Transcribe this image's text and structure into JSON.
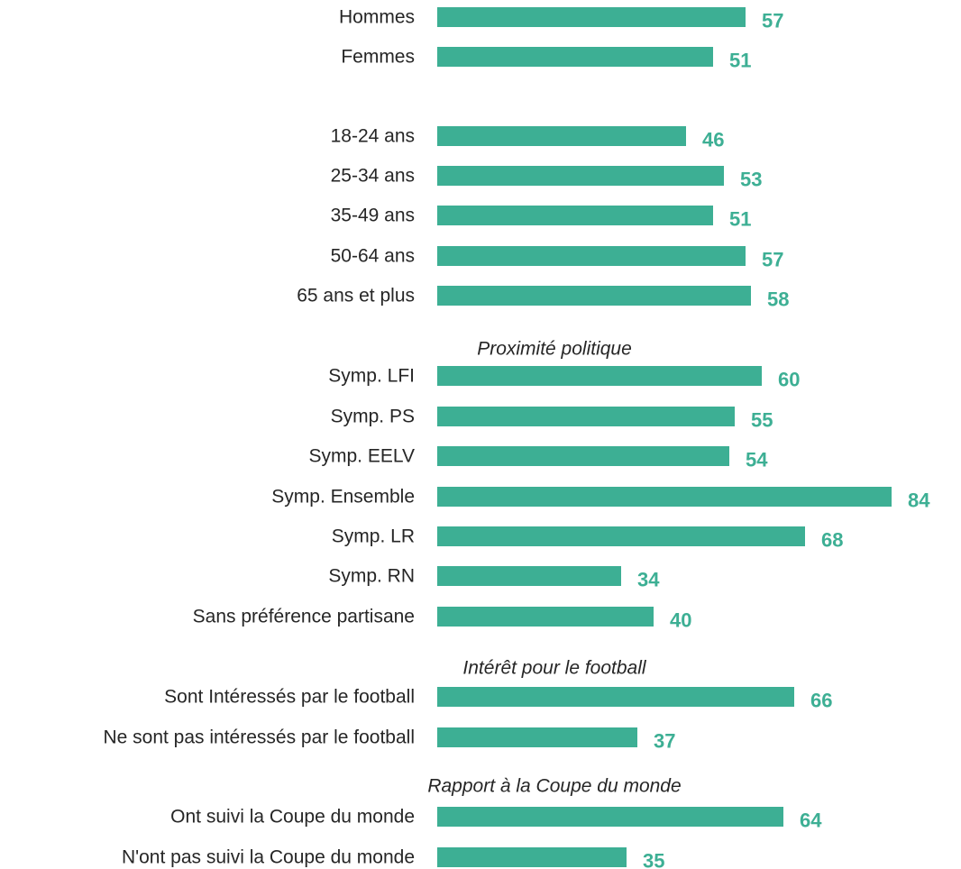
{
  "chart_data": {
    "type": "bar",
    "orientation": "horizontal",
    "bar_color": "#3daf94",
    "label_color": "#3daf94",
    "text_color": "#262626",
    "xlim": [
      0,
      84
    ],
    "grid": false,
    "groups": [
      {
        "section": "",
        "rows": [
          {
            "category": "Hommes",
            "value": 57
          },
          {
            "category": "Femmes",
            "value": 51
          }
        ]
      },
      {
        "section": "",
        "rows": [
          {
            "category": "18-24 ans",
            "value": 46
          },
          {
            "category": "25-34 ans",
            "value": 53
          },
          {
            "category": "35-49 ans",
            "value": 51
          },
          {
            "category": "50-64 ans",
            "value": 57
          },
          {
            "category": "65 ans et plus",
            "value": 58
          }
        ]
      },
      {
        "section": "Proximité politique",
        "rows": [
          {
            "category": "Symp. LFI",
            "value": 60
          },
          {
            "category": "Symp. PS",
            "value": 55
          },
          {
            "category": "Symp. EELV",
            "value": 54
          },
          {
            "category": "Symp. Ensemble",
            "value": 84
          },
          {
            "category": "Symp. LR",
            "value": 68
          },
          {
            "category": "Symp. RN",
            "value": 34
          },
          {
            "category": "Sans préférence partisane",
            "value": 40
          }
        ]
      },
      {
        "section": "Intérêt pour le football",
        "rows": [
          {
            "category": "Sont Intéressés par le football",
            "value": 66
          },
          {
            "category": "Ne sont pas intéressés par le football",
            "value": 37
          }
        ]
      },
      {
        "section": "Rapport à la Coupe du monde",
        "rows": [
          {
            "category": "Ont suivi la Coupe du monde",
            "value": 64
          },
          {
            "category": "N'ont pas suivi la Coupe du monde",
            "value": 35
          }
        ]
      }
    ]
  }
}
